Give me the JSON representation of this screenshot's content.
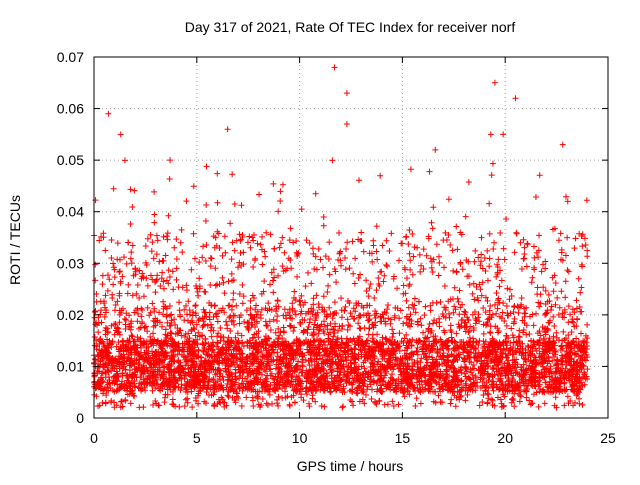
{
  "chart_data": {
    "type": "scatter",
    "title": "Day 317 of 2021, Rate Of TEC Index for receiver norf",
    "xlabel": "GPS time / hours",
    "ylabel": "ROTI / TECUs",
    "xlim": [
      0,
      25
    ],
    "ylim": [
      0,
      0.07
    ],
    "x_ticks": [
      0,
      5,
      10,
      15,
      20,
      25
    ],
    "x_tick_labels": [
      "0",
      "5",
      "10",
      "15",
      "20",
      "25"
    ],
    "y_ticks": [
      0,
      0.01,
      0.02,
      0.03,
      0.04,
      0.05,
      0.06,
      0.07
    ],
    "y_tick_labels": [
      "0",
      "0.01",
      "0.02",
      "0.03",
      "0.04",
      "0.05",
      "0.06",
      "0.07"
    ],
    "grid": true,
    "marker": "+",
    "series_color": "#ff0000",
    "series": [
      {
        "name": "ROTI",
        "data_range": {
          "x": [
            0,
            24
          ],
          "y": [
            0.002,
            0.068
          ]
        },
        "typical_band": [
          0.005,
          0.015
        ],
        "sample_count_estimate": 20000,
        "peak_values": [
          {
            "x": 0.7,
            "y": 0.059
          },
          {
            "x": 1.3,
            "y": 0.055
          },
          {
            "x": 3.7,
            "y": 0.05
          },
          {
            "x": 6.5,
            "y": 0.056
          },
          {
            "x": 11.7,
            "y": 0.068
          },
          {
            "x": 12.3,
            "y": 0.063
          },
          {
            "x": 12.3,
            "y": 0.057
          },
          {
            "x": 16.6,
            "y": 0.052
          },
          {
            "x": 19.3,
            "y": 0.055
          },
          {
            "x": 19.5,
            "y": 0.065
          },
          {
            "x": 19.9,
            "y": 0.055
          },
          {
            "x": 20.5,
            "y": 0.062
          },
          {
            "x": 22.8,
            "y": 0.053
          }
        ]
      }
    ]
  }
}
